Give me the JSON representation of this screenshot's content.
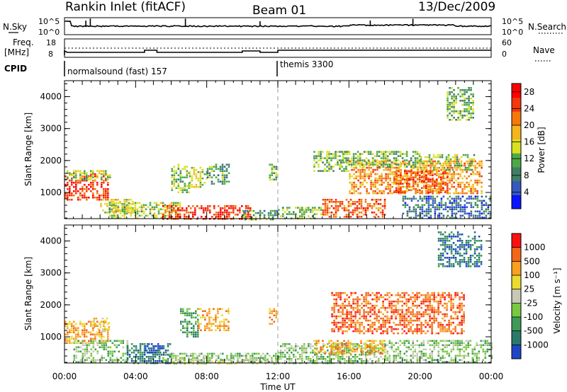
{
  "header": {
    "site": "Rankin Inlet (fitACF)",
    "beam": "Beam 01",
    "date": "13/Dec/2009"
  },
  "strip": {
    "nsky_label": "N.Sky",
    "nsky_ticks": [
      "10^5",
      "10^0"
    ],
    "nsearch_label": "N.Search",
    "nsearch_ticks": [
      "10^5",
      "10^0"
    ],
    "freq_label": "Freq.",
    "freq_unit": "[MHz]",
    "freq_ticks": [
      "18",
      "8"
    ],
    "nave_label": "Nave",
    "nave_ticks": [
      "60",
      "0"
    ],
    "cpid_label": "CPID",
    "cpid_segments": [
      {
        "start_hr": 0,
        "end_hr": 12,
        "label": "normalsound (fast) 157"
      },
      {
        "start_hr": 12,
        "end_hr": 24,
        "label": "themis 3300"
      }
    ]
  },
  "chart_data": [
    {
      "type": "heatmap",
      "title": "",
      "xlabel": "",
      "ylabel": "Slant Range [km]",
      "x_ticks": [
        "00:00",
        "04:00",
        "08:00",
        "12:00",
        "16:00",
        "20:00",
        "00:00"
      ],
      "y_ticks": [
        "1000",
        "2000",
        "3000",
        "4000"
      ],
      "xlim_hours": [
        0,
        24
      ],
      "ylim_km": [
        180,
        4500
      ],
      "colorbar": {
        "label": "Power [dB]",
        "ticks": [
          "4",
          "8",
          "12",
          "16",
          "20",
          "24",
          "28"
        ],
        "range": [
          0,
          30
        ],
        "colors": [
          "#0a14ff",
          "#3758bf",
          "#3f7f63",
          "#4ea84a",
          "#d8e020",
          "#f6b41c",
          "#f4780a",
          "#f2380c",
          "#ff0000"
        ]
      },
      "regions": [
        {
          "t0": 0.0,
          "t1": 2.5,
          "r0": 800,
          "r1": 1600,
          "level": 27
        },
        {
          "t0": 0.0,
          "t1": 2.6,
          "r0": 1400,
          "r1": 1700,
          "level": 13
        },
        {
          "t0": 2.0,
          "t1": 4.0,
          "r0": 400,
          "r1": 800,
          "level": 16
        },
        {
          "t0": 2.5,
          "t1": 6.5,
          "r0": 180,
          "r1": 700,
          "level": 14
        },
        {
          "t0": 5.5,
          "t1": 10.5,
          "r0": 180,
          "r1": 600,
          "level": 27
        },
        {
          "t0": 10.0,
          "t1": 12.0,
          "r0": 180,
          "r1": 450,
          "level": 10
        },
        {
          "t0": 12.0,
          "t1": 14.5,
          "r0": 180,
          "r1": 550,
          "level": 12
        },
        {
          "t0": 14.5,
          "t1": 18.0,
          "r0": 250,
          "r1": 800,
          "level": 24
        },
        {
          "t0": 6.0,
          "t1": 7.0,
          "r0": 1000,
          "r1": 1900,
          "level": 12
        },
        {
          "t0": 7.0,
          "t1": 8.0,
          "r0": 1200,
          "r1": 1800,
          "level": 15
        },
        {
          "t0": 8.0,
          "t1": 9.2,
          "r0": 1300,
          "r1": 1900,
          "level": 9
        },
        {
          "t0": 11.5,
          "t1": 11.9,
          "r0": 1400,
          "r1": 1900,
          "level": 11
        },
        {
          "t0": 14.0,
          "t1": 16.0,
          "r0": 1700,
          "r1": 2300,
          "level": 12
        },
        {
          "t0": 16.0,
          "t1": 23.5,
          "r0": 1000,
          "r1": 2000,
          "level": 21
        },
        {
          "t0": 18.5,
          "t1": 21.5,
          "r0": 1000,
          "r1": 1700,
          "level": 25
        },
        {
          "t0": 15.5,
          "t1": 20.0,
          "r0": 1800,
          "r1": 2300,
          "level": 12
        },
        {
          "t0": 20.0,
          "t1": 23.0,
          "r0": 1700,
          "r1": 2200,
          "level": 14
        },
        {
          "t0": 21.5,
          "t1": 23.0,
          "r0": 3300,
          "r1": 4300,
          "level": 11
        },
        {
          "t0": 19.0,
          "t1": 24.0,
          "r0": 180,
          "r1": 900,
          "level": 6
        }
      ]
    },
    {
      "type": "heatmap",
      "title": "",
      "xlabel": "Time UT",
      "ylabel": "Slant Range [km]",
      "x_ticks": [
        "00:00",
        "04:00",
        "08:00",
        "12:00",
        "16:00",
        "20:00",
        "00:00"
      ],
      "y_ticks": [
        "1000",
        "2000",
        "3000",
        "4000"
      ],
      "xlim_hours": [
        0,
        24
      ],
      "ylim_km": [
        180,
        4500
      ],
      "colorbar": {
        "label": "Velocity [m s⁻¹]",
        "ticks": [
          "1000",
          "500",
          "100",
          "25",
          "-25",
          "-100",
          "-500",
          "-1000"
        ],
        "colors": [
          "#2046c8",
          "#2a7a6a",
          "#3d9a57",
          "#78c840",
          "#c8c8b8",
          "#e8dc30",
          "#f8a020",
          "#f26818",
          "#ff1010"
        ]
      },
      "regions": [
        {
          "t0": 0.0,
          "t1": 2.5,
          "r0": 800,
          "r1": 1500,
          "level": 6
        },
        {
          "t0": 1.5,
          "t1": 2.5,
          "r0": 1200,
          "r1": 1600,
          "level": 5
        },
        {
          "t0": 0.5,
          "t1": 3.5,
          "r0": 180,
          "r1": 900,
          "level": 3
        },
        {
          "t0": 3.5,
          "t1": 6.0,
          "r0": 180,
          "r1": 800,
          "level": 1
        },
        {
          "t0": 4.5,
          "t1": 5.5,
          "r0": 500,
          "r1": 800,
          "level": 0
        },
        {
          "t0": 5.5,
          "t1": 12.0,
          "r0": 180,
          "r1": 500,
          "level": 3
        },
        {
          "t0": 6.0,
          "t1": 12.0,
          "r0": 180,
          "r1": 320,
          "level": 4
        },
        {
          "t0": 6.5,
          "t1": 7.5,
          "r0": 1000,
          "r1": 1900,
          "level": 2
        },
        {
          "t0": 7.5,
          "t1": 9.2,
          "r0": 1200,
          "r1": 1900,
          "level": 6
        },
        {
          "t0": 11.5,
          "t1": 11.9,
          "r0": 1400,
          "r1": 1900,
          "level": 6
        },
        {
          "t0": 12.0,
          "t1": 18.0,
          "r0": 180,
          "r1": 800,
          "level": 3
        },
        {
          "t0": 14.0,
          "t1": 18.0,
          "r0": 500,
          "r1": 900,
          "level": 6
        },
        {
          "t0": 15.0,
          "t1": 22.5,
          "r0": 1100,
          "r1": 2400,
          "level": 7
        },
        {
          "t0": 18.0,
          "t1": 24.0,
          "r0": 180,
          "r1": 900,
          "level": 3
        },
        {
          "t0": 21.0,
          "t1": 23.5,
          "r0": 3200,
          "r1": 4300,
          "level": 1
        }
      ]
    }
  ]
}
